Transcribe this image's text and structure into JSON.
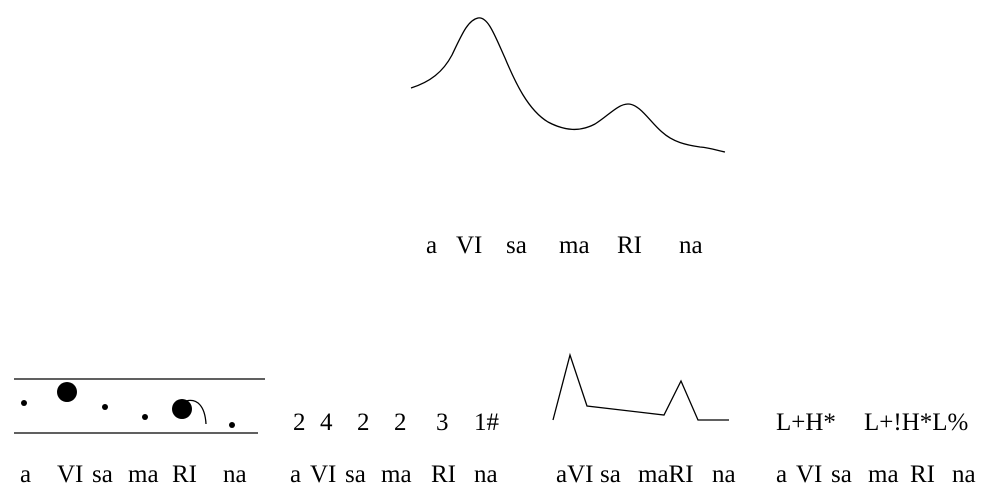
{
  "main_contour": {
    "syllables": [
      "a",
      "VI",
      "sa",
      "ma",
      "RI",
      "na"
    ]
  },
  "dot_notation": {
    "syllables": [
      "a",
      "VI",
      "sa",
      "ma",
      "RI",
      "na"
    ],
    "dots": [
      {
        "syllable": "a",
        "size": "small",
        "level": "mid"
      },
      {
        "syllable": "VI",
        "size": "large",
        "level": "high"
      },
      {
        "syllable": "sa",
        "size": "small",
        "level": "mid"
      },
      {
        "syllable": "ma",
        "size": "small",
        "level": "low"
      },
      {
        "syllable": "RI",
        "size": "large",
        "level": "mid",
        "tail": "fall"
      },
      {
        "syllable": "na",
        "size": "small",
        "level": "low"
      }
    ]
  },
  "number_notation": {
    "levels": [
      "2",
      "4",
      "2",
      "2",
      "3",
      "1#"
    ],
    "syllables": [
      "a",
      "VI",
      "sa",
      "ma",
      "RI",
      "na"
    ]
  },
  "stylized_contour": {
    "syllables": [
      "aVI",
      "sa",
      "maRI",
      "na"
    ]
  },
  "tobi_notation": {
    "accents": [
      "L+H*",
      "L+!H*L%"
    ],
    "syllables": [
      "a",
      "VI",
      "sa",
      "ma",
      "RI",
      "na"
    ]
  },
  "colors": {
    "ink": "#000000",
    "background": "#ffffff"
  }
}
